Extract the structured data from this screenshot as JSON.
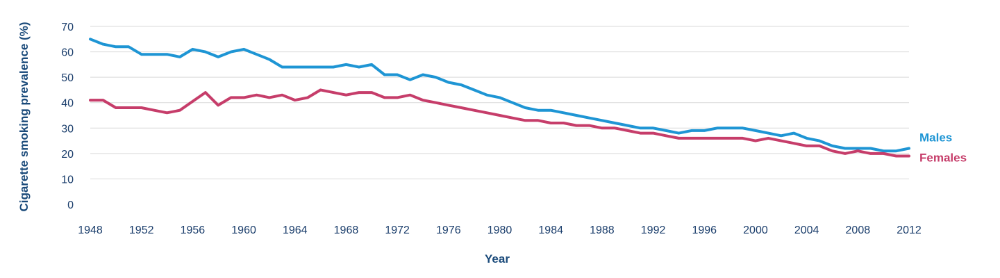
{
  "chart_data": {
    "type": "line",
    "xlabel": "Year",
    "ylabel": "Cigarette smoking prevalence (%)",
    "xlim": [
      1948,
      2012
    ],
    "ylim": [
      0,
      70
    ],
    "x_ticks": [
      "1948",
      "1952",
      "1956",
      "1960",
      "1964",
      "1968",
      "1972",
      "1976",
      "1980",
      "1984",
      "1988",
      "1992",
      "1996",
      "2000",
      "2004",
      "2008",
      "2012"
    ],
    "y_ticks": [
      "0",
      "10",
      "20",
      "30",
      "40",
      "50",
      "60",
      "70"
    ],
    "grid": "horizontal",
    "legend": "end-of-line labels",
    "series": [
      {
        "name": "Males",
        "color": "#1e95d4",
        "x": [
          1948,
          1949,
          1950,
          1951,
          1952,
          1953,
          1954,
          1955,
          1956,
          1957,
          1958,
          1959,
          1960,
          1961,
          1962,
          1963,
          1964,
          1965,
          1966,
          1967,
          1968,
          1969,
          1970,
          1971,
          1972,
          1973,
          1974,
          1975,
          1976,
          1977,
          1978,
          1979,
          1980,
          1981,
          1982,
          1983,
          1984,
          1985,
          1986,
          1987,
          1988,
          1989,
          1990,
          1991,
          1992,
          1993,
          1994,
          1995,
          1996,
          1997,
          1998,
          1999,
          2000,
          2001,
          2002,
          2003,
          2004,
          2005,
          2006,
          2007,
          2008,
          2009,
          2010,
          2011,
          2012
        ],
        "values": [
          65,
          63,
          62,
          62,
          59,
          59,
          59,
          58,
          61,
          60,
          58,
          60,
          61,
          59,
          57,
          54,
          54,
          54,
          54,
          54,
          55,
          54,
          55,
          51,
          51,
          49,
          51,
          50,
          48,
          47,
          45,
          43,
          42,
          40,
          38,
          37,
          37,
          36,
          35,
          34,
          33,
          32,
          31,
          30,
          30,
          29,
          28,
          29,
          29,
          30,
          30,
          30,
          29,
          28,
          27,
          28,
          26,
          25,
          23,
          22,
          22,
          22,
          21,
          21,
          22
        ]
      },
      {
        "name": "Females",
        "color": "#c63d6a",
        "x": [
          1948,
          1949,
          1950,
          1951,
          1952,
          1953,
          1954,
          1955,
          1956,
          1957,
          1958,
          1959,
          1960,
          1961,
          1962,
          1963,
          1964,
          1965,
          1966,
          1967,
          1968,
          1969,
          1970,
          1971,
          1972,
          1973,
          1974,
          1975,
          1976,
          1977,
          1978,
          1979,
          1980,
          1981,
          1982,
          1983,
          1984,
          1985,
          1986,
          1987,
          1988,
          1989,
          1990,
          1991,
          1992,
          1993,
          1994,
          1995,
          1996,
          1997,
          1998,
          1999,
          2000,
          2001,
          2002,
          2003,
          2004,
          2005,
          2006,
          2007,
          2008,
          2009,
          2010,
          2011,
          2012
        ],
        "values": [
          41,
          41,
          38,
          38,
          38,
          37,
          36,
          37,
          40.5,
          44,
          39,
          42,
          42,
          43,
          42,
          43,
          41,
          42,
          45,
          44,
          43,
          44,
          44,
          42,
          42,
          43,
          41,
          40,
          39,
          38,
          37,
          36,
          35,
          34,
          33,
          33,
          32,
          32,
          31,
          31,
          30,
          30,
          29,
          28,
          28,
          27,
          26,
          26,
          26,
          26,
          26,
          26,
          25,
          26,
          25,
          24,
          23,
          23,
          21,
          20,
          21,
          20,
          20,
          19,
          19
        ]
      }
    ]
  }
}
